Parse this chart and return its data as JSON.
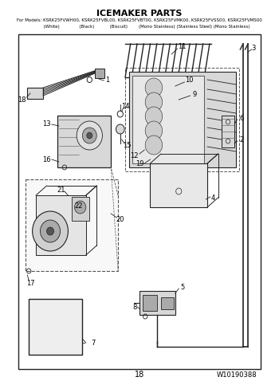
{
  "title": "ICEMAKER PARTS",
  "subtitle": "For Models: KSRK25FVWH00, KSRK25FVBL00, KSRK25FVBT00, KSRK25FVMK00, KSRK25FVSS00, KSRK25FVMS00",
  "subtitle2": "          (White)              (Black)           (Biscuit)        (Mono Stainless) (Stainless Steel) (Mono Stainless)",
  "page_number": "18",
  "part_number": "W10190388",
  "bg_color": "#ffffff",
  "text_color": "#000000",
  "line_color": "#222222",
  "gray_light": "#d8d8d8",
  "gray_mid": "#aaaaaa",
  "gray_dark": "#555555"
}
